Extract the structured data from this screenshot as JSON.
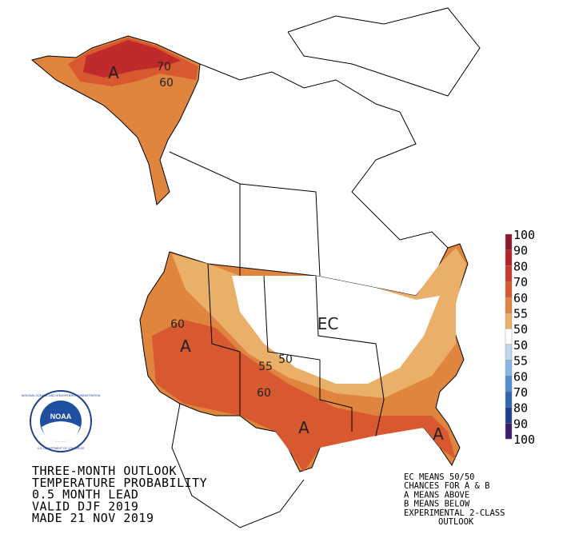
{
  "title_lines": [
    "THREE-MONTH OUTLOOK",
    "TEMPERATURE PROBABILITY",
    "0.5 MONTH LEAD",
    "VALID DJF 2019",
    "MADE 21 NOV 2019"
  ],
  "notes": [
    "EC MEANS 50/50",
    "CHANCES FOR A & B",
    "A MEANS ABOVE",
    "B MEANS BELOW",
    "EXPERIMENTAL 2-CLASS",
    "OUTLOOK"
  ],
  "legend": {
    "labels": [
      "100",
      "90",
      "80",
      "70",
      "60",
      "55",
      "50",
      "50",
      "55",
      "60",
      "70",
      "80",
      "90",
      "100"
    ],
    "colors": [
      "#8B1A2A",
      "#B0242A",
      "#C93A2A",
      "#D8582F",
      "#E0853E",
      "#EAB06A",
      "#FFFFFF",
      "#BFD6EE",
      "#86B6E2",
      "#4F8FD0",
      "#2E66B0",
      "#1E3F8C",
      "#3B1D6B"
    ]
  },
  "map_labels": [
    "70",
    "60",
    "A",
    "60",
    "A",
    "55",
    "50",
    "60",
    "EC",
    "A",
    "A"
  ],
  "logo": {
    "name": "NOAA",
    "ring_top": "NATIONAL OCEANIC AND ATMOSPHERIC ADMINISTRATION",
    "ring_bottom": "U.S. DEPARTMENT OF COMMERCE"
  }
}
